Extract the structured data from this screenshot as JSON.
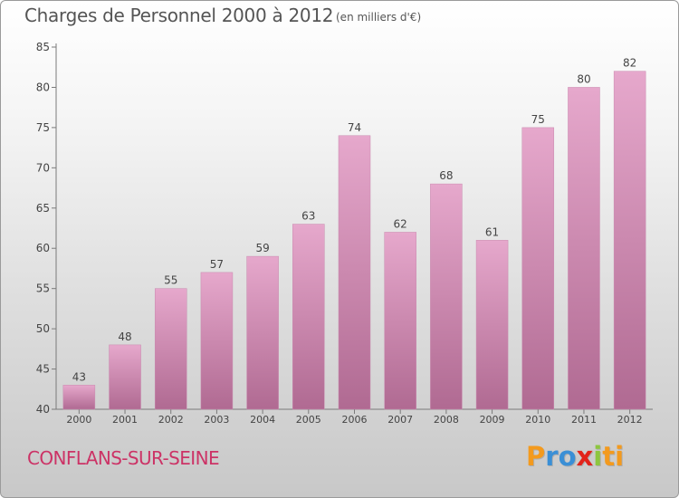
{
  "header": {
    "title": "Charges de Personnel 2000 à 2012",
    "subtitle": "(en milliers d'€)"
  },
  "footer": {
    "town": "CONFLANS-SUR-SEINE",
    "logo_text": "Proxiti"
  },
  "colors": {
    "bar_light": "#e6a8cc",
    "bar_dark": "#b06a92",
    "town_text": "#cc3366",
    "axis": "#7a7a7a"
  },
  "chart_data": {
    "type": "bar",
    "categories": [
      "2000",
      "2001",
      "2002",
      "2003",
      "2004",
      "2005",
      "2006",
      "2007",
      "2008",
      "2009",
      "2010",
      "2011",
      "2012"
    ],
    "values": [
      43,
      48,
      55,
      57,
      59,
      63,
      74,
      62,
      68,
      61,
      75,
      80,
      82
    ],
    "ylim": [
      40,
      85
    ],
    "yticks": [
      40,
      45,
      50,
      55,
      60,
      65,
      70,
      75,
      80,
      85
    ],
    "grid": false,
    "data_labels": true
  }
}
